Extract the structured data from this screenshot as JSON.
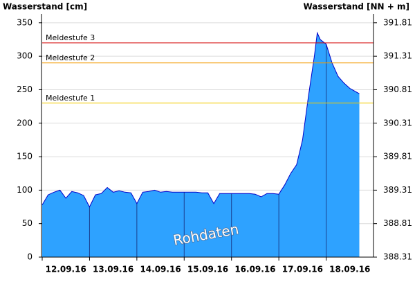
{
  "chart_data": {
    "type": "area",
    "y_label": "Wasserstand [cm]",
    "y2_label": "Wasserstand [NN + m]",
    "watermark": "Rohdaten",
    "xlim": [
      0,
      7
    ],
    "xticks": [
      {
        "value": 0.5,
        "label": "12.09.16"
      },
      {
        "value": 1.5,
        "label": "13.09.16"
      },
      {
        "value": 2.5,
        "label": "14.09.16"
      },
      {
        "value": 3.5,
        "label": "15.09.16"
      },
      {
        "value": 4.5,
        "label": "16.09.16"
      },
      {
        "value": 5.5,
        "label": "17.09.16"
      },
      {
        "value": 6.5,
        "label": "18.09.16"
      }
    ],
    "ylim": [
      0,
      355
    ],
    "yticks": [
      0,
      50,
      100,
      150,
      200,
      250,
      300,
      350
    ],
    "y2lim": [
      388.31,
      391.86
    ],
    "y2ticks": [
      388.31,
      388.81,
      389.31,
      389.81,
      390.31,
      390.81,
      391.31,
      391.81
    ],
    "grid": true,
    "thresholds": [
      {
        "label": "Meldestufe 3",
        "value": 320,
        "color": "#d40000"
      },
      {
        "label": "Meldestufe 2",
        "value": 290,
        "color": "#f39a00"
      },
      {
        "label": "Meldestufe 1",
        "value": 230,
        "color": "#f2cc00"
      }
    ],
    "series": [
      {
        "color": "#0000c8",
        "fill": "#2ea2ff",
        "x": [
          0,
          0.125,
          0.25,
          0.375,
          0.5,
          0.625,
          0.75,
          0.875,
          1,
          1.125,
          1.25,
          1.375,
          1.5,
          1.625,
          1.75,
          1.875,
          2,
          2.125,
          2.25,
          2.375,
          2.5,
          2.625,
          2.75,
          2.875,
          3,
          3.125,
          3.25,
          3.375,
          3.5,
          3.625,
          3.75,
          3.875,
          4,
          4.125,
          4.25,
          4.375,
          4.5,
          4.625,
          4.75,
          4.875,
          5,
          5.125,
          5.25,
          5.375,
          5.5,
          5.625,
          5.75,
          5.8125,
          5.875,
          6,
          6.125,
          6.25,
          6.375,
          6.5,
          6.625,
          6.7
        ],
        "values": [
          78,
          93,
          97,
          100,
          88,
          98,
          96,
          92,
          75,
          93,
          95,
          104,
          97,
          99,
          97,
          96,
          80,
          97,
          98,
          100,
          97,
          98,
          97,
          97,
          97,
          97,
          97,
          96,
          96,
          80,
          95,
          95,
          95,
          95,
          95,
          95,
          94,
          90,
          95,
          95,
          94,
          108,
          125,
          138,
          175,
          240,
          300,
          335,
          325,
          318,
          290,
          270,
          260,
          252,
          247,
          244
        ]
      }
    ]
  }
}
